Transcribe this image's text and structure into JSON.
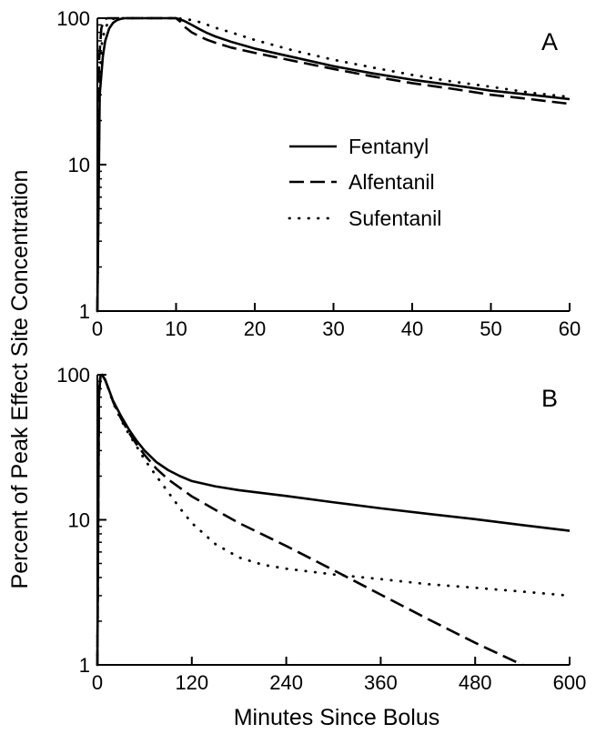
{
  "figure": {
    "ylabel": "Percent of Peak Effect Site Concentration",
    "xlabel": "Minutes Since Bolus"
  },
  "legend": {
    "items": [
      {
        "label": "Fentanyl",
        "style": "solid"
      },
      {
        "label": "Alfentanil",
        "style": "dashed"
      },
      {
        "label": "Sufentanil",
        "style": "dotted"
      }
    ]
  },
  "chart_data": [
    {
      "type": "line",
      "panel_label": "A",
      "scale_y": "log",
      "xlim": [
        0,
        60
      ],
      "ylim": [
        1,
        100
      ],
      "xticks": [
        0,
        10,
        20,
        30,
        40,
        50,
        60
      ],
      "yticks": [
        1,
        10,
        100
      ],
      "xtick_labels": [
        "0",
        "10",
        "20",
        "30",
        "40",
        "50",
        "60"
      ],
      "ytick_labels": [
        "1",
        "10",
        "100"
      ],
      "legend_position": "center-right",
      "series": [
        {
          "name": "Fentanyl",
          "style": "solid",
          "x": [
            0,
            0.3,
            0.7,
            1,
            1.5,
            2,
            2.5,
            3,
            3.5,
            4,
            5,
            6,
            8,
            10,
            11,
            12,
            13,
            14,
            15,
            17,
            20,
            25,
            30,
            35,
            40,
            45,
            50,
            55,
            60
          ],
          "y": [
            1,
            30,
            55,
            70,
            85,
            93,
            97,
            99,
            100,
            100,
            100,
            100,
            100,
            100,
            96,
            90,
            84,
            79,
            75,
            69,
            62,
            54,
            47,
            42,
            38,
            35,
            32,
            30,
            28
          ]
        },
        {
          "name": "Alfentanil",
          "style": "dashed",
          "x": [
            0,
            0.2,
            0.5,
            0.8,
            1,
            1.3,
            1.6,
            2,
            3,
            4,
            6,
            8,
            10,
            10.5,
            11,
            12,
            13,
            14,
            15,
            17,
            20,
            25,
            30,
            35,
            40,
            45,
            50,
            55,
            60
          ],
          "y": [
            1,
            50,
            85,
            96,
            99,
            100,
            100,
            100,
            100,
            100,
            100,
            100,
            100,
            95,
            88,
            80,
            75,
            71,
            68,
            63,
            58,
            51,
            45,
            40,
            36,
            33,
            30,
            28,
            26
          ]
        },
        {
          "name": "Sufentanil",
          "style": "dotted",
          "x": [
            0,
            0.3,
            0.6,
            1,
            1.5,
            2,
            2.5,
            3,
            4,
            6,
            8,
            10,
            11,
            12,
            13,
            14,
            15,
            17,
            20,
            25,
            30,
            35,
            40,
            45,
            50,
            55,
            60
          ],
          "y": [
            1,
            40,
            70,
            86,
            95,
            99,
            100,
            100,
            100,
            100,
            100,
            100,
            99,
            97,
            94,
            90,
            86,
            80,
            71,
            60,
            52,
            46,
            41,
            37,
            34,
            31,
            29
          ]
        }
      ]
    },
    {
      "type": "line",
      "panel_label": "B",
      "scale_y": "log",
      "xlim": [
        0,
        600
      ],
      "ylim": [
        1,
        100
      ],
      "xticks": [
        0,
        120,
        240,
        360,
        480,
        600
      ],
      "yticks": [
        1,
        10,
        100
      ],
      "xtick_labels": [
        "0",
        "120",
        "240",
        "360",
        "480",
        "600"
      ],
      "ytick_labels": [
        "1",
        "10",
        "100"
      ],
      "series": [
        {
          "name": "Fentanyl",
          "style": "solid",
          "x": [
            0,
            2,
            4,
            6,
            10,
            15,
            20,
            30,
            40,
            50,
            60,
            75,
            90,
            105,
            120,
            150,
            180,
            240,
            300,
            360,
            420,
            480,
            540,
            600
          ],
          "y": [
            1,
            70,
            98,
            100,
            92,
            78,
            66,
            52,
            42,
            35,
            30,
            25,
            22,
            20,
            18.5,
            17,
            16,
            14.6,
            13.2,
            12,
            11,
            10.1,
            9.2,
            8.4
          ]
        },
        {
          "name": "Alfentanil",
          "style": "dashed",
          "x": [
            0,
            2,
            4,
            6,
            10,
            15,
            20,
            30,
            40,
            50,
            60,
            75,
            90,
            120,
            150,
            180,
            240,
            300,
            360,
            420,
            480,
            540
          ],
          "y": [
            1,
            75,
            98,
            100,
            92,
            78,
            65,
            50,
            40,
            33,
            28,
            22.5,
            19,
            14.5,
            11.7,
            9.5,
            6.6,
            4.5,
            3.05,
            2.07,
            1.42,
            1.0
          ]
        },
        {
          "name": "Sufentanil",
          "style": "dotted",
          "x": [
            0,
            2,
            4,
            6,
            10,
            15,
            20,
            30,
            40,
            50,
            60,
            75,
            90,
            105,
            120,
            150,
            180,
            210,
            240,
            300,
            360,
            420,
            480,
            540,
            600
          ],
          "y": [
            1,
            70,
            98,
            100,
            92,
            77,
            64,
            49,
            39,
            32,
            26,
            20,
            15.5,
            12,
            9.5,
            6.8,
            5.5,
            4.9,
            4.6,
            4.2,
            3.9,
            3.6,
            3.4,
            3.2,
            3.0
          ]
        }
      ]
    }
  ]
}
